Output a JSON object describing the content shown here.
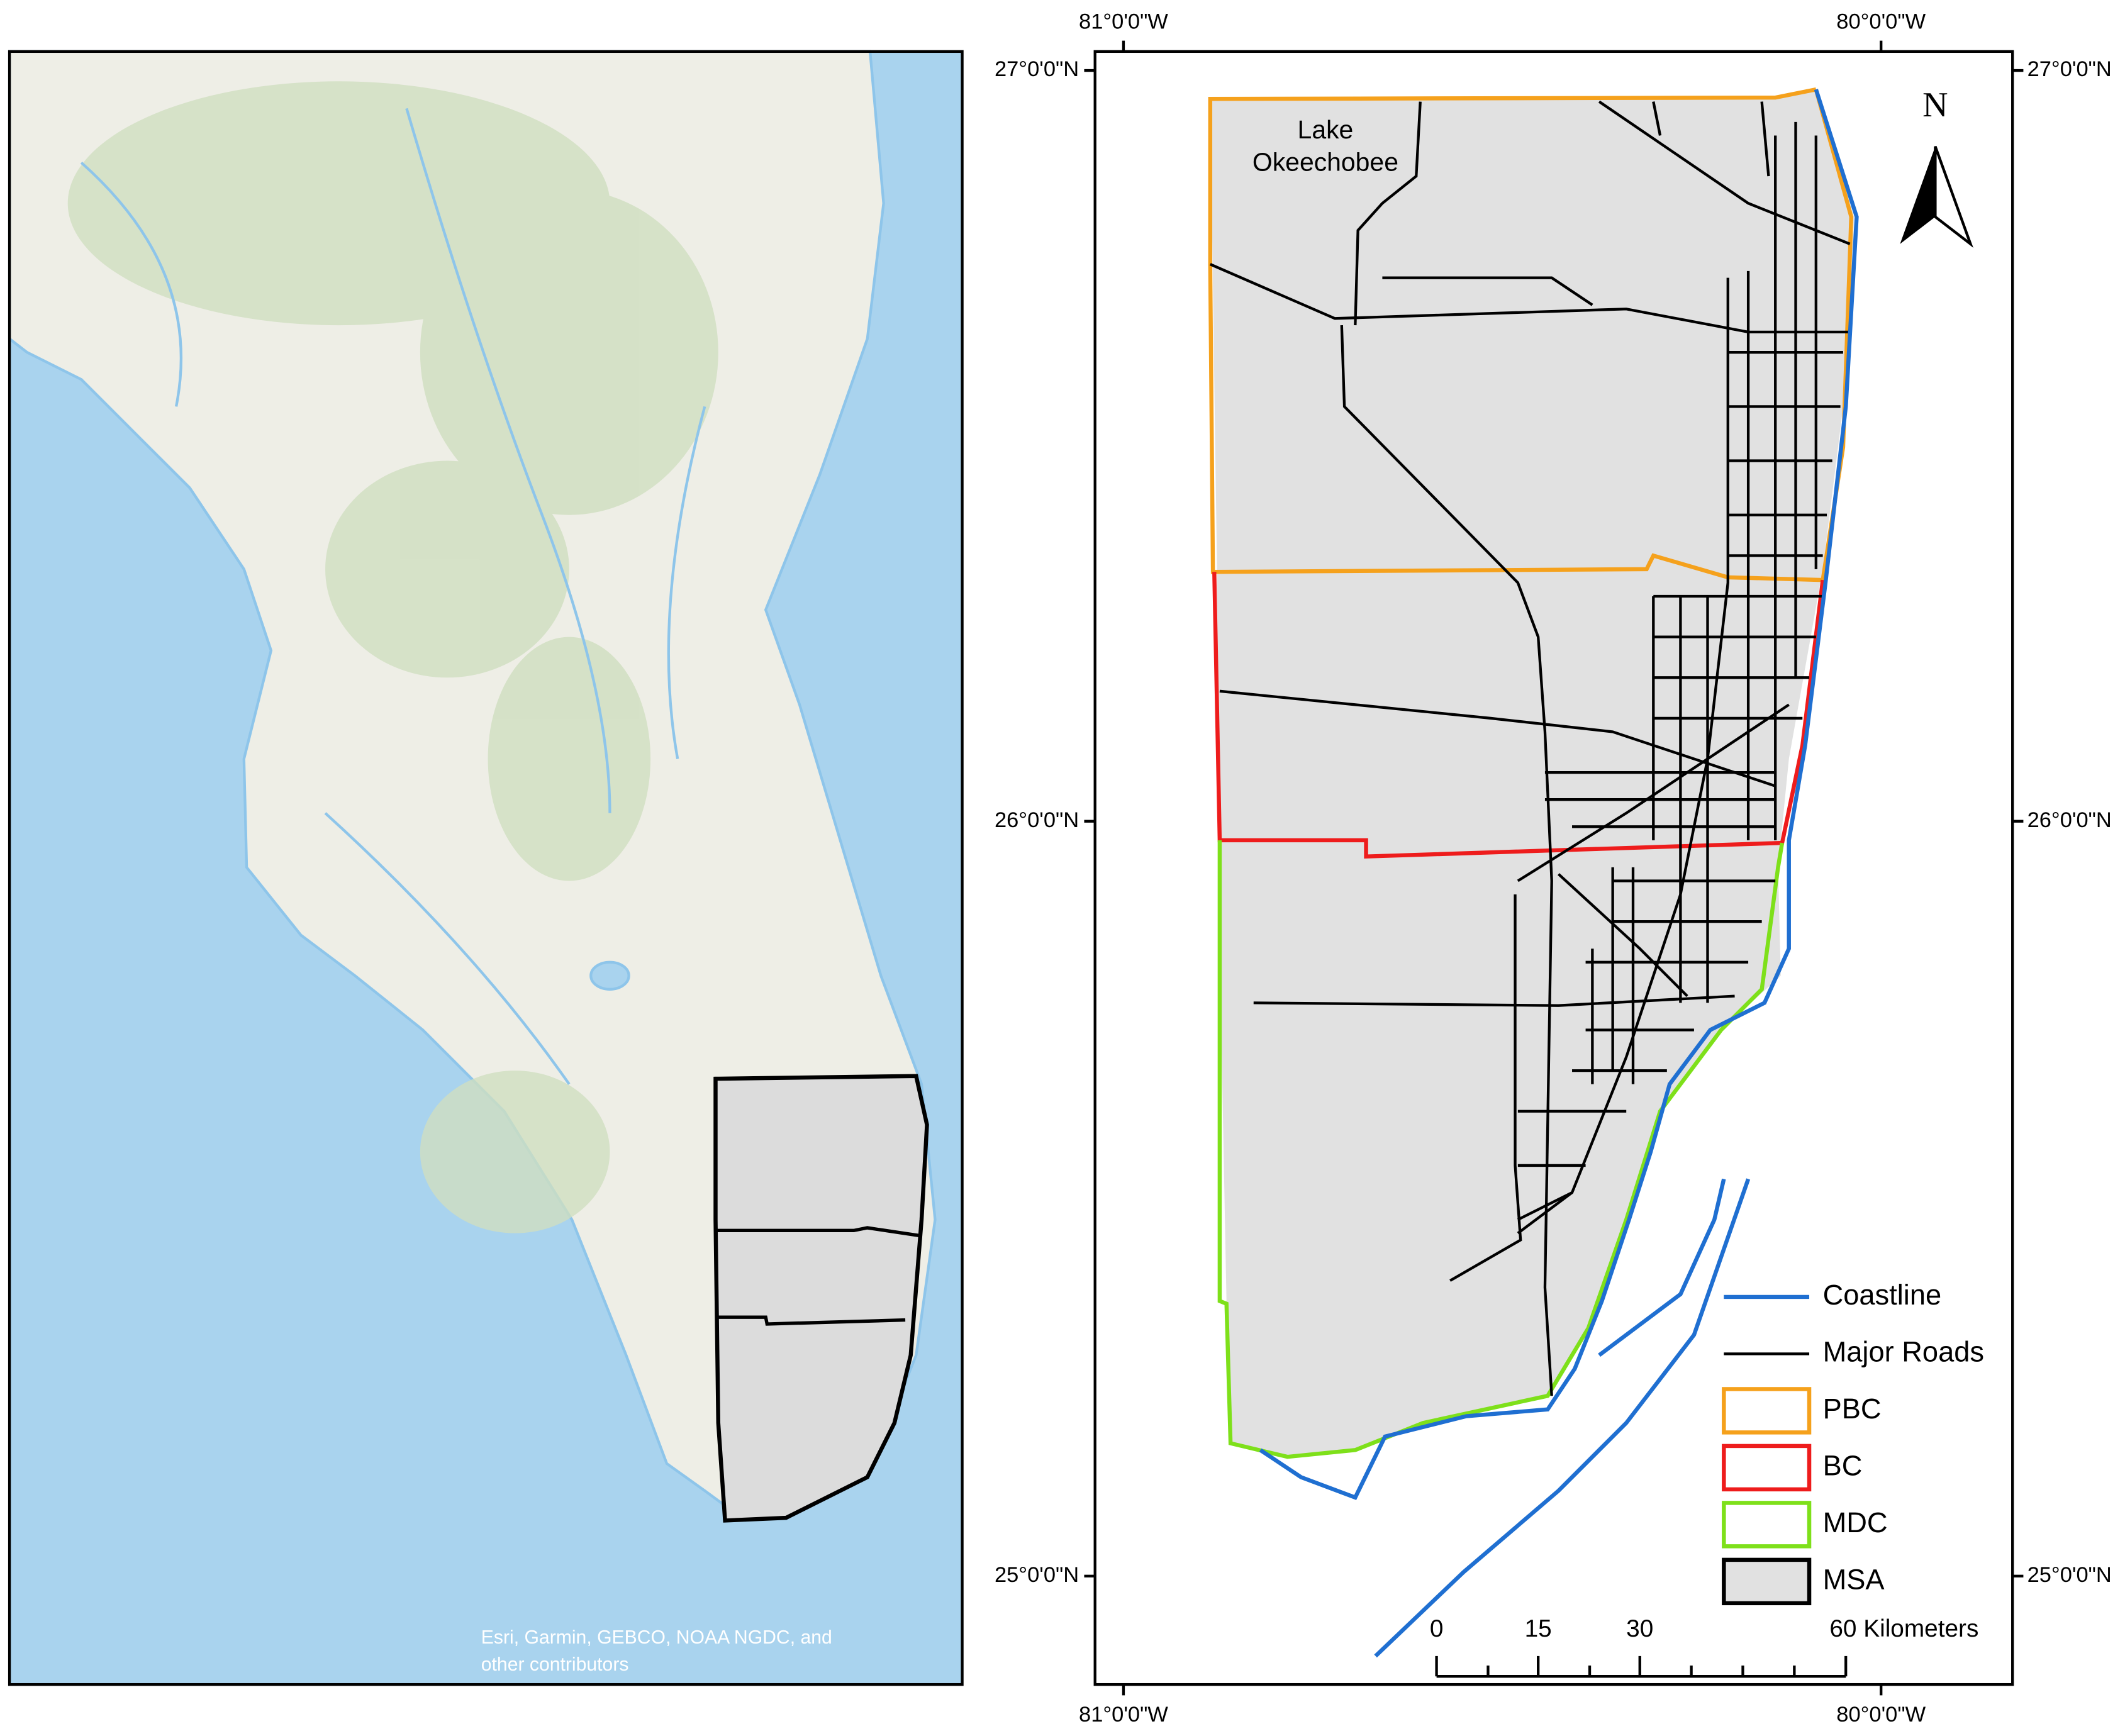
{
  "left_map": {
    "attribution": [
      "Esri, Garmin, GEBCO, NOAA NGDC, and",
      "other contributors"
    ]
  },
  "right_map": {
    "longitude_labels": [
      "81°0'0\"W",
      "80°0'0\"W"
    ],
    "latitude_labels": [
      "27°0'0\"N",
      "26°0'0\"N",
      "25°0'0\"N"
    ],
    "lake_label": [
      "Lake",
      "Okeechobee"
    ],
    "north_arrow": "N",
    "legend": [
      {
        "label": "Coastline",
        "color": "#1f6fd1",
        "kind": "line"
      },
      {
        "label": "Major Roads",
        "color": "#000000",
        "kind": "line"
      },
      {
        "label": "PBC",
        "color": "#f5a11c",
        "kind": "box"
      },
      {
        "label": "BC",
        "color": "#ee1c1c",
        "kind": "box"
      },
      {
        "label": "MDC",
        "color": "#7ee01a",
        "kind": "box"
      },
      {
        "label": "MSA",
        "color": "#000000",
        "kind": "box"
      }
    ],
    "scale_bar": [
      "0",
      "15",
      "30",
      "60 Kilometers"
    ]
  }
}
